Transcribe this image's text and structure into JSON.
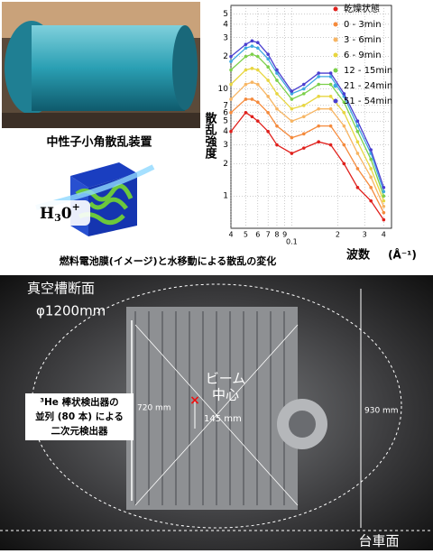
{
  "top_left": {
    "device_label": "中性子小角散乱装置",
    "ion": {
      "base": "H",
      "sub": "3",
      "mid": "0",
      "sup": "+"
    }
  },
  "caption": "燃料電池膜(イメージ)と水移動による散乱の変化",
  "chart_data": {
    "type": "line",
    "y_label": "散乱強度",
    "x_label": "波数",
    "x_unit": "(Å⁻¹)",
    "x_log": true,
    "y_log": true,
    "grid": true,
    "legend": "upper right",
    "xlim": [
      0.04,
      0.45
    ],
    "ylim": [
      0.5,
      60
    ],
    "xticks": [
      {
        "value": 0.04,
        "label": "4"
      },
      {
        "value": 0.05,
        "label": "5"
      },
      {
        "value": 0.06,
        "label": "6"
      },
      {
        "value": 0.07,
        "label": "7"
      },
      {
        "value": 0.08,
        "label": "8"
      },
      {
        "value": 0.09,
        "label": "9"
      },
      0.1,
      {
        "value": 0.2,
        "label": "2"
      },
      {
        "value": 0.3,
        "label": "3"
      },
      {
        "value": 0.4,
        "label": "4"
      }
    ],
    "yticks": [
      1,
      2,
      3,
      4,
      5,
      6,
      7,
      10,
      {
        "value": 20,
        "label": "2"
      },
      {
        "value": 30,
        "label": "3"
      },
      {
        "value": 40,
        "label": "4"
      },
      {
        "value": 50,
        "label": "5"
      }
    ],
    "x": [
      0.04,
      0.05,
      0.055,
      0.06,
      0.07,
      0.08,
      0.1,
      0.12,
      0.15,
      0.18,
      0.22,
      0.27,
      0.33,
      0.4
    ],
    "series": [
      {
        "name": "乾燥状態",
        "color": "#e0201c",
        "values": [
          4,
          6,
          5.5,
          5,
          4,
          3,
          2.5,
          2.8,
          3.2,
          3,
          2,
          1.2,
          0.9,
          0.6
        ]
      },
      {
        "name": "0 - 3min",
        "color": "#f58a3c",
        "values": [
          6,
          8,
          8,
          7.5,
          6,
          4.5,
          3.5,
          3.8,
          4.5,
          4.5,
          3,
          1.8,
          1.2,
          0.7
        ]
      },
      {
        "name": "3 - 6min",
        "color": "#f7b563",
        "values": [
          8,
          11,
          11.5,
          11,
          8.5,
          6.5,
          5,
          5.5,
          6.5,
          6.5,
          4.5,
          2.5,
          1.5,
          0.8
        ]
      },
      {
        "name": "6 - 9min",
        "color": "#e8d640",
        "values": [
          11,
          15,
          15.5,
          15,
          12,
          9,
          6.5,
          7,
          8.5,
          8.5,
          6,
          3.2,
          1.8,
          0.9
        ]
      },
      {
        "name": "12 - 15min",
        "color": "#7cd04a",
        "values": [
          15,
          20,
          21,
          20,
          16,
          12,
          8,
          9,
          11,
          11,
          7.5,
          4,
          2.2,
          1
        ]
      },
      {
        "name": "21 - 24min",
        "color": "#3fa9e0",
        "values": [
          18,
          24,
          25,
          24,
          19,
          14,
          9,
          10,
          13,
          13,
          8.5,
          4.5,
          2.5,
          1.1
        ]
      },
      {
        "name": "51 - 54min",
        "color": "#4a3fd0",
        "values": [
          20,
          26,
          28,
          27,
          21,
          15,
          9.5,
          11,
          14,
          14,
          9,
          5,
          2.7,
          1.2
        ]
      }
    ]
  },
  "bottom_photo": {
    "section_label": "真空槽断面",
    "diameter": "φ1200mm",
    "detector_lines": [
      "³He 棒状検出器の",
      "並列 (80 本) による",
      "二次元検出器"
    ],
    "height_label": "720 mm",
    "outer_label": "930 mm",
    "offset_label": "145 mm",
    "beam_lines": [
      "ビーム",
      "中心"
    ],
    "base_label": "台車面"
  }
}
